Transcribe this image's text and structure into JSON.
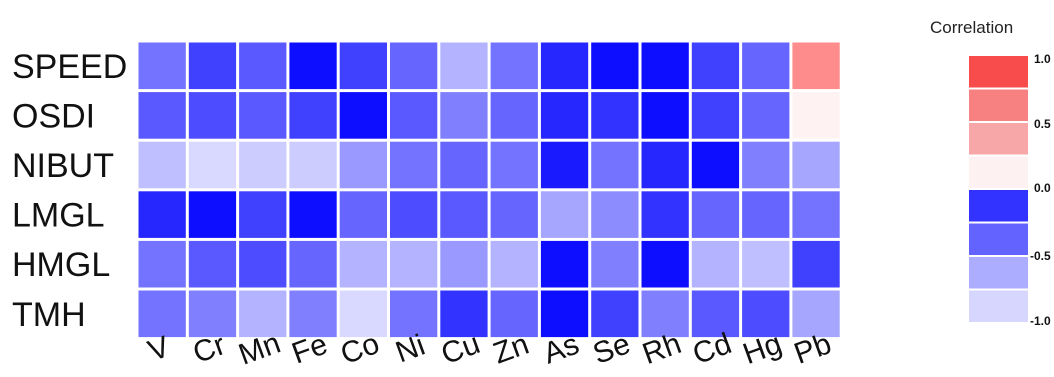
{
  "chart_data": {
    "type": "heatmap",
    "rows": [
      "SPEED",
      "OSDI",
      "NIBUT",
      "LMGL",
      "HMGL",
      "TMH"
    ],
    "columns": [
      "V",
      "Cr",
      "Mn",
      "Fe",
      "Co",
      "Ni",
      "Cu",
      "Zn",
      "As",
      "Se",
      "Rh",
      "Cd",
      "Hg",
      "Pb"
    ],
    "values": [
      [
        -0.55,
        -0.75,
        -0.65,
        -0.95,
        -0.75,
        -0.6,
        -0.3,
        -0.55,
        -0.85,
        -0.95,
        -0.95,
        -0.75,
        -0.6,
        0.45
      ],
      [
        -0.65,
        -0.7,
        -0.65,
        -0.75,
        -0.95,
        -0.65,
        -0.5,
        -0.6,
        -0.85,
        -0.8,
        -0.95,
        -0.75,
        -0.6,
        0.05
      ],
      [
        -0.25,
        -0.15,
        -0.2,
        -0.2,
        -0.4,
        -0.55,
        -0.6,
        -0.55,
        -0.9,
        -0.55,
        -0.85,
        -0.95,
        -0.5,
        -0.35
      ],
      [
        -0.85,
        -0.95,
        -0.75,
        -0.95,
        -0.6,
        -0.7,
        -0.65,
        -0.6,
        -0.35,
        -0.45,
        -0.8,
        -0.6,
        -0.6,
        -0.55
      ],
      [
        -0.55,
        -0.65,
        -0.7,
        -0.6,
        -0.3,
        -0.3,
        -0.4,
        -0.3,
        -0.95,
        -0.5,
        -0.95,
        -0.3,
        -0.25,
        -0.75
      ],
      [
        -0.55,
        -0.5,
        -0.3,
        -0.5,
        -0.15,
        -0.55,
        -0.8,
        -0.6,
        -0.95,
        -0.75,
        -0.5,
        -0.65,
        -0.7,
        -0.35
      ]
    ],
    "color_scale": {
      "min": -1.0,
      "max": 1.0,
      "negative_color": "#0000ff",
      "positive_color": "#ff0000",
      "neutral_color": "#ffffff"
    },
    "legend": {
      "title": "Correlation",
      "ticks": [
        "1.0",
        "0.5",
        "0.0",
        "-0.5",
        "-1.0"
      ],
      "swatches": [
        "#f84b4b",
        "#f78080",
        "#f7a7a7",
        "#fdf1f1",
        "#3333ff",
        "#6363ff",
        "#adadff",
        "#d6d6ff"
      ],
      "placement": "right"
    }
  }
}
